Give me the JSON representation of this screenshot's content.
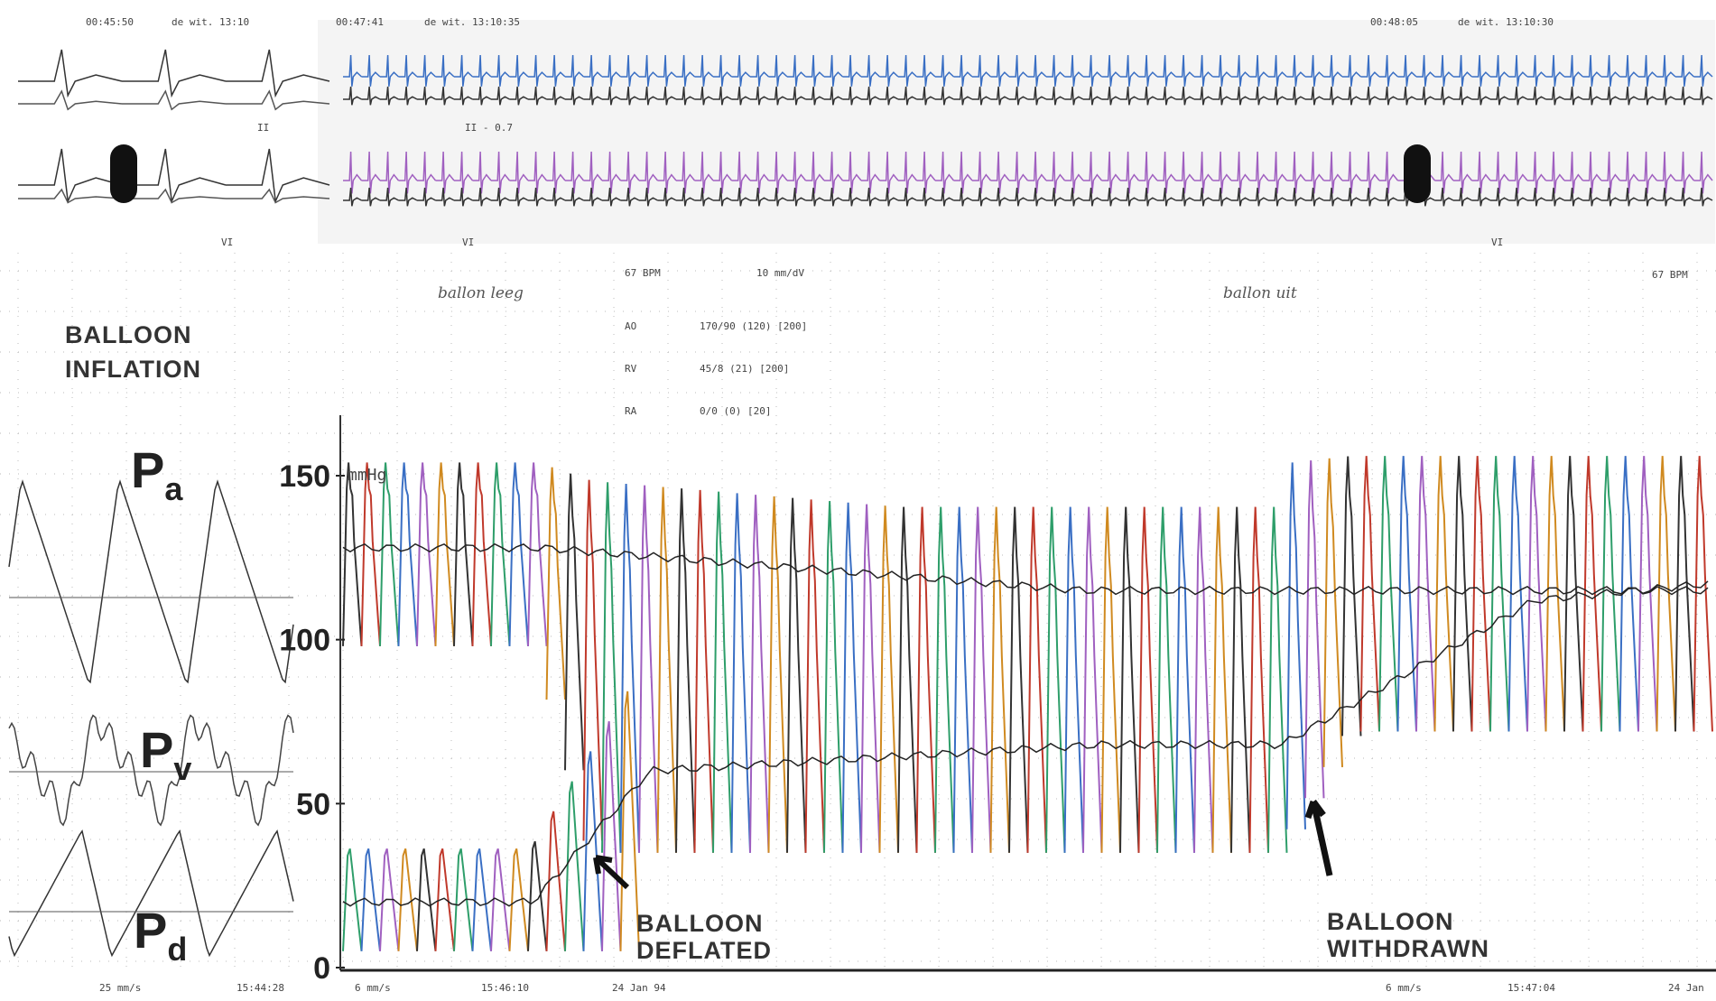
{
  "header": {
    "left": {
      "time": "00:45:50",
      "patient": "de wit. 13:10"
    },
    "middle": {
      "time": "00:47:41",
      "patient": "de wit. 13:10:35"
    },
    "right": {
      "time": "00:48:05",
      "patient": "de wit. 13:10:30"
    }
  },
  "ecg_labels": {
    "left_lead_1": "II",
    "left_lead_2": "VI",
    "middle_lead_1": "II - 0.7",
    "middle_lead_2": "VI",
    "right_lead_2": "VI"
  },
  "monitor": {
    "heart_rate_left": "67 BPM",
    "gain": "10 mm/dV",
    "heart_rate_right": "67 BPM",
    "rows": [
      {
        "channel": "AO",
        "reading": "170/90 (120) [200]"
      },
      {
        "channel": "RV",
        "reading": "45/8 (21) [200]"
      },
      {
        "channel": "RA",
        "reading": "0/0 (0) [20]"
      }
    ]
  },
  "handwriting": {
    "first": "ballon leeg",
    "second": "ballon uit"
  },
  "left_panel": {
    "title": [
      "BALLOON",
      "INFLATION"
    ],
    "traces": [
      {
        "symbol": "P",
        "sub": "a"
      },
      {
        "symbol": "P",
        "sub": "v"
      },
      {
        "symbol": "P",
        "sub": "d"
      }
    ]
  },
  "pressure_axis": {
    "unit": "mmHg",
    "ticks": [
      0,
      50,
      100,
      150
    ]
  },
  "annotations": {
    "deflated": [
      "BALLOON",
      "DEFLATED"
    ],
    "withdrawn": [
      "BALLOON",
      "WITHDRAWN"
    ]
  },
  "footer": {
    "left_speed": "25 mm/s",
    "left_time": "15:44:28",
    "mid_speed": "6 mm/s",
    "mid_time": "15:46:10",
    "mid_date": "24 Jan 94",
    "right_speed": "6 mm/s",
    "right_time": "15:47:04",
    "right_date": "24 Jan"
  }
}
